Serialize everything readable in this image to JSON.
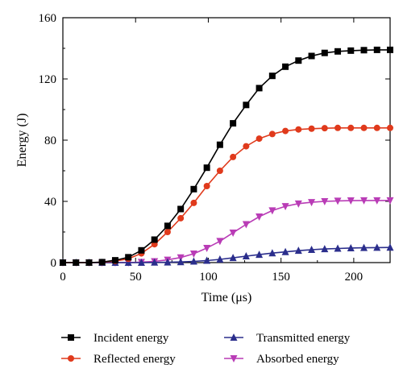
{
  "chart_data": {
    "type": "line",
    "xlabel": "Time (μs)",
    "ylabel": "Energy (J)",
    "xlim": [
      0,
      225
    ],
    "ylim": [
      0,
      160
    ],
    "xticks": [
      0,
      50,
      100,
      150,
      200
    ],
    "yticks": [
      0,
      40,
      80,
      120,
      160
    ],
    "grid": false,
    "legend_position": "bottom",
    "x": [
      0,
      9,
      18,
      27,
      36,
      45,
      54,
      63,
      72,
      81,
      90,
      99,
      108,
      117,
      126,
      135,
      144,
      153,
      162,
      171,
      180,
      189,
      198,
      207,
      216,
      225
    ],
    "series": [
      {
        "name": "Incident energy",
        "marker": "square",
        "color": "#000000",
        "values": [
          0,
          0,
          0,
          0.3,
          1.5,
          3.5,
          8,
          15,
          24,
          35,
          48,
          62,
          77,
          91,
          103,
          114,
          122,
          128,
          132,
          135,
          137,
          138,
          138.5,
          138.8,
          139,
          139
        ]
      },
      {
        "name": "Reflected energy",
        "marker": "circle",
        "color": "#e03a1c",
        "values": [
          0,
          0,
          0,
          0.2,
          1,
          2.5,
          6,
          12,
          20,
          29,
          39,
          50,
          60,
          69,
          76,
          81,
          84,
          86,
          87,
          87.5,
          87.8,
          88,
          88,
          88,
          88,
          88
        ]
      },
      {
        "name": "Transmitted energy",
        "marker": "triangle",
        "color": "#2b2e8c",
        "values": [
          0,
          0,
          0,
          0,
          0,
          0,
          0,
          0.1,
          0.2,
          0.4,
          0.8,
          1.3,
          2.1,
          3.1,
          4.2,
          5.2,
          6.2,
          7,
          7.8,
          8.4,
          8.9,
          9.2,
          9.5,
          9.7,
          9.8,
          9.9
        ]
      },
      {
        "name": "Absorbed energy",
        "marker": "triangle-down",
        "color": "#b93cb6",
        "values": [
          0,
          0,
          0,
          0,
          0,
          0,
          0.3,
          0.8,
          1.8,
          3.3,
          5.8,
          9.5,
          14,
          19.5,
          25,
          30,
          34,
          36.8,
          38.5,
          39.4,
          40,
          40.3,
          40.5,
          40.6,
          40.6,
          40.6
        ]
      }
    ]
  }
}
